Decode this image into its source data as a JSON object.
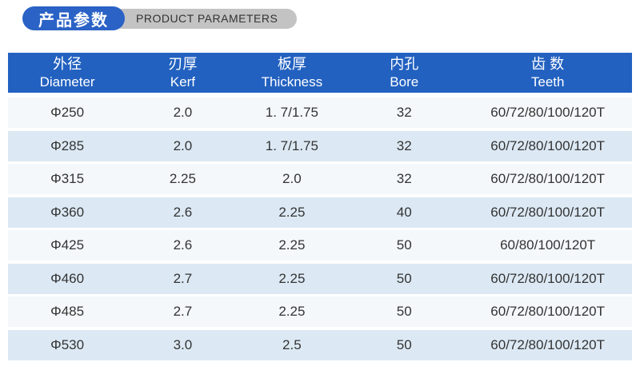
{
  "title": {
    "zh": "产品参数",
    "en": "PRODUCT PARAMETERS"
  },
  "colors": {
    "title_pill_bg": "#2a62c6",
    "title_capsule_bg": "#c3c3c3",
    "header_bg": "#2261c0",
    "header_text": "#ffffff",
    "row_odd_bg": "#f4f8fb",
    "row_even_bg": "#dce9f4",
    "cell_text": "#333333"
  },
  "table": {
    "columns": [
      {
        "zh": "外径",
        "en": "Diameter"
      },
      {
        "zh": "刃厚",
        "en": "Kerf"
      },
      {
        "zh": "板厚",
        "en": "Thickness"
      },
      {
        "zh": "内孔",
        "en": "Bore"
      },
      {
        "zh": "齿 数",
        "en": "Teeth"
      }
    ],
    "rows": [
      [
        "Φ250",
        "2.0",
        "1. 7/1.75",
        "32",
        "60/72/80/100/120T"
      ],
      [
        "Φ285",
        "2.0",
        "1. 7/1.75",
        "32",
        "60/72/80/100/120T"
      ],
      [
        "Φ315",
        "2.25",
        "2.0",
        "32",
        "60/72/80/100/120T"
      ],
      [
        "Φ360",
        "2.6",
        "2.25",
        "40",
        "60/72/80/100/120T"
      ],
      [
        "Φ425",
        "2.6",
        "2.25",
        "50",
        "60/80/100/120T"
      ],
      [
        "Φ460",
        "2.7",
        "2.25",
        "50",
        "60/72/80/100/120T"
      ],
      [
        "Φ485",
        "2.7",
        "2.25",
        "50",
        "60/72/80/100/120T"
      ],
      [
        "Φ530",
        "3.0",
        "2.5",
        "50",
        "60/72/80/100/120T"
      ]
    ]
  }
}
